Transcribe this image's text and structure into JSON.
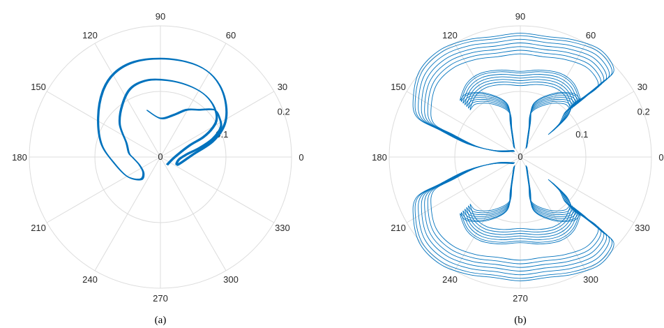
{
  "chart_data": [
    {
      "type": "polar-line",
      "caption": "(a)",
      "theta_ticks_deg": [
        0,
        30,
        60,
        90,
        120,
        150,
        180,
        210,
        240,
        270,
        300,
        330
      ],
      "r_ticks": [
        "0",
        "0.1",
        "0.2"
      ],
      "rlim": [
        0,
        0.2
      ],
      "grid": true,
      "line_color": "#0072BD",
      "grid_color": "#dcdcdc",
      "series": [
        {
          "style": "thick-ring",
          "points": [
            [
              -0.02,
              0.071
            ],
            [
              0.0,
              0.059
            ],
            [
              0.02,
              0.064
            ],
            [
              0.04,
              0.072
            ],
            [
              0.06,
              0.072
            ],
            [
              0.082,
              0.072
            ],
            [
              0.09,
              0.06
            ],
            [
              0.092,
              0.045
            ],
            [
              0.08,
              0.028
            ],
            [
              0.06,
              0.014
            ],
            [
              0.04,
              0.004
            ],
            [
              0.028,
              -0.004
            ],
            [
              0.026,
              -0.012
            ],
            [
              0.05,
              0.004
            ],
            [
              0.08,
              0.024
            ],
            [
              0.098,
              0.05
            ],
            [
              0.1,
              0.08
            ],
            [
              0.09,
              0.11
            ],
            [
              0.07,
              0.132
            ],
            [
              0.04,
              0.145
            ],
            [
              0.0,
              0.15
            ],
            [
              -0.04,
              0.145
            ],
            [
              -0.07,
              0.128
            ],
            [
              -0.088,
              0.1
            ],
            [
              -0.095,
              0.06
            ],
            [
              -0.09,
              0.02
            ],
            [
              -0.07,
              -0.01
            ],
            [
              -0.05,
              -0.03
            ],
            [
              -0.03,
              -0.034
            ],
            [
              -0.026,
              -0.024
            ],
            [
              -0.032,
              -0.012
            ],
            [
              -0.042,
              -0.001
            ],
            [
              -0.048,
              0.006
            ],
            [
              -0.052,
              0.022
            ],
            [
              -0.062,
              0.05
            ],
            [
              -0.058,
              0.08
            ],
            [
              -0.045,
              0.105
            ],
            [
              -0.02,
              0.117
            ],
            [
              0.01,
              0.117
            ],
            [
              0.04,
              0.11
            ],
            [
              0.065,
              0.097
            ],
            [
              0.08,
              0.08
            ],
            [
              0.086,
              0.06
            ],
            [
              0.08,
              0.045
            ],
            [
              0.065,
              0.03
            ],
            [
              0.045,
              0.018
            ],
            [
              0.022,
              0.0
            ],
            [
              0.01,
              -0.012
            ]
          ]
        }
      ]
    },
    {
      "type": "polar-line",
      "caption": "(b)",
      "theta_ticks_deg": [
        0,
        30,
        60,
        90,
        120,
        150,
        180,
        210,
        240,
        270,
        300,
        330
      ],
      "r_ticks": [
        "0",
        "0.1",
        "0.2"
      ],
      "rlim": [
        0,
        0.2
      ],
      "grid": true,
      "line_color": "#0072BD",
      "grid_color": "#dcdcdc",
      "series": [
        {
          "style": "multi-loop-lobes",
          "outer_lobe_top": [
            [
              0.05,
              0.04
            ],
            [
              0.07,
              0.06
            ],
            [
              0.08,
              0.08
            ],
            [
              0.095,
              0.09
            ],
            [
              0.12,
              0.11
            ],
            [
              0.14,
              0.13
            ],
            [
              0.12,
              0.16
            ],
            [
              0.08,
              0.175
            ],
            [
              0.04,
              0.18
            ],
            [
              0.0,
              0.185
            ],
            [
              -0.04,
              0.18
            ],
            [
              -0.08,
              0.175
            ],
            [
              -0.12,
              0.16
            ],
            [
              -0.15,
              0.13
            ],
            [
              -0.16,
              0.09
            ],
            [
              -0.155,
              0.06
            ],
            [
              -0.12,
              0.04
            ],
            [
              -0.08,
              0.02
            ],
            [
              -0.04,
              0.01
            ],
            [
              -0.01,
              0.01
            ]
          ],
          "inner_lobe_top": [
            [
              0.01,
              0.015
            ],
            [
              0.015,
              0.05
            ],
            [
              0.02,
              0.08
            ],
            [
              0.05,
              0.095
            ],
            [
              0.08,
              0.095
            ],
            [
              0.09,
              0.085
            ],
            [
              0.08,
              0.11
            ],
            [
              0.06,
              0.125
            ],
            [
              0.03,
              0.13
            ],
            [
              0.0,
              0.128
            ],
            [
              -0.03,
              0.13
            ],
            [
              -0.06,
              0.125
            ],
            [
              -0.08,
              0.11
            ],
            [
              -0.09,
              0.085
            ],
            [
              -0.08,
              0.095
            ],
            [
              -0.05,
              0.095
            ],
            [
              -0.02,
              0.08
            ],
            [
              -0.015,
              0.05
            ],
            [
              -0.01,
              0.015
            ]
          ]
        }
      ]
    }
  ]
}
